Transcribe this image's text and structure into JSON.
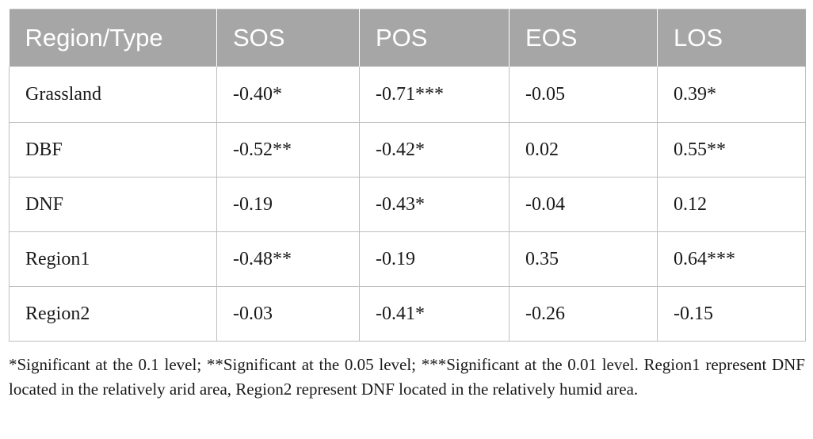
{
  "table": {
    "headers": [
      "Region/Type",
      "SOS",
      "POS",
      "EOS",
      "LOS"
    ],
    "rows": [
      [
        "Grassland",
        "-0.40*",
        "-0.71***",
        "-0.05",
        "0.39*"
      ],
      [
        "DBF",
        "-0.52**",
        "-0.42*",
        "0.02",
        "0.55**"
      ],
      [
        "DNF",
        "-0.19",
        "-0.43*",
        "-0.04",
        "0.12"
      ],
      [
        "Region1",
        "-0.48**",
        "-0.19",
        "0.35",
        "0.64***"
      ],
      [
        "Region2",
        "-0.03",
        "-0.41*",
        "-0.26",
        "-0.15"
      ]
    ]
  },
  "footnote": "*Significant at the 0.1 level; **Significant at the 0.05 level; ***Significant at the 0.01 level. Region1 represent DNF located in the relatively arid area, Region2 represent DNF located in the relatively humid area.",
  "colors": {
    "header_bg": "#a6a6a6",
    "header_text": "#ffffff",
    "border": "#bfbfbf"
  }
}
